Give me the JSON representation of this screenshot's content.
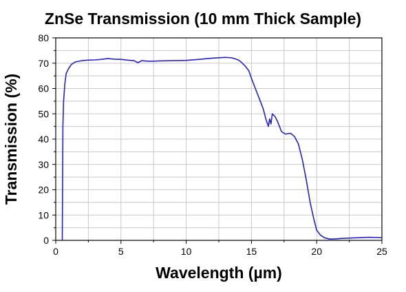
{
  "chart_data": {
    "type": "line",
    "title": "ZnSe Transmission (10 mm Thick Sample)",
    "xlabel": "Wavelength (µm)",
    "ylabel": "Transmission (%)",
    "xlim": [
      0,
      25
    ],
    "ylim": [
      0,
      80
    ],
    "xticks": [
      "0",
      "5",
      "10",
      "15",
      "20",
      "25"
    ],
    "yticks": [
      "0",
      "10",
      "20",
      "30",
      "40",
      "50",
      "60",
      "70",
      "80"
    ],
    "grid": true,
    "legend": "none",
    "line_color": "#1f1fd6",
    "series": [
      {
        "x": [
          0.5,
          0.55,
          0.6,
          0.7,
          0.8,
          1.0,
          1.2,
          1.5,
          2.0,
          2.5,
          3.0,
          3.5,
          4.0,
          4.5,
          5.0,
          5.5,
          6.0,
          6.3,
          6.6,
          7.0,
          7.5,
          8.0,
          9.0,
          10.0,
          11.0,
          12.0,
          13.0,
          13.5,
          14.0,
          14.2,
          14.5,
          14.8,
          15.0,
          15.3,
          15.6,
          15.9,
          16.1,
          16.3,
          16.4,
          16.5,
          16.6,
          16.8,
          17.0,
          17.3,
          17.6,
          18.0,
          18.3,
          18.6,
          18.9,
          19.2,
          19.5,
          19.8,
          20.0,
          20.3,
          20.6,
          21.0,
          21.5,
          22.0,
          23.0,
          24.0,
          25.0
        ],
        "y": [
          0,
          45,
          55,
          62,
          66,
          68,
          69.5,
          70.5,
          71,
          71.2,
          71.3,
          71.5,
          71.8,
          71.6,
          71.5,
          71.2,
          71,
          70.2,
          71,
          70.8,
          70.8,
          70.9,
          71,
          71.1,
          71.5,
          72,
          72.3,
          72.1,
          71.3,
          70.5,
          69,
          67,
          64,
          60,
          56,
          52,
          48,
          45,
          48,
          46,
          50,
          49,
          47,
          43,
          42,
          42.3,
          41,
          38,
          32,
          24,
          15,
          8,
          4,
          2,
          1,
          0.5,
          0.6,
          0.8,
          1.0,
          1.2,
          1.1
        ]
      }
    ]
  }
}
